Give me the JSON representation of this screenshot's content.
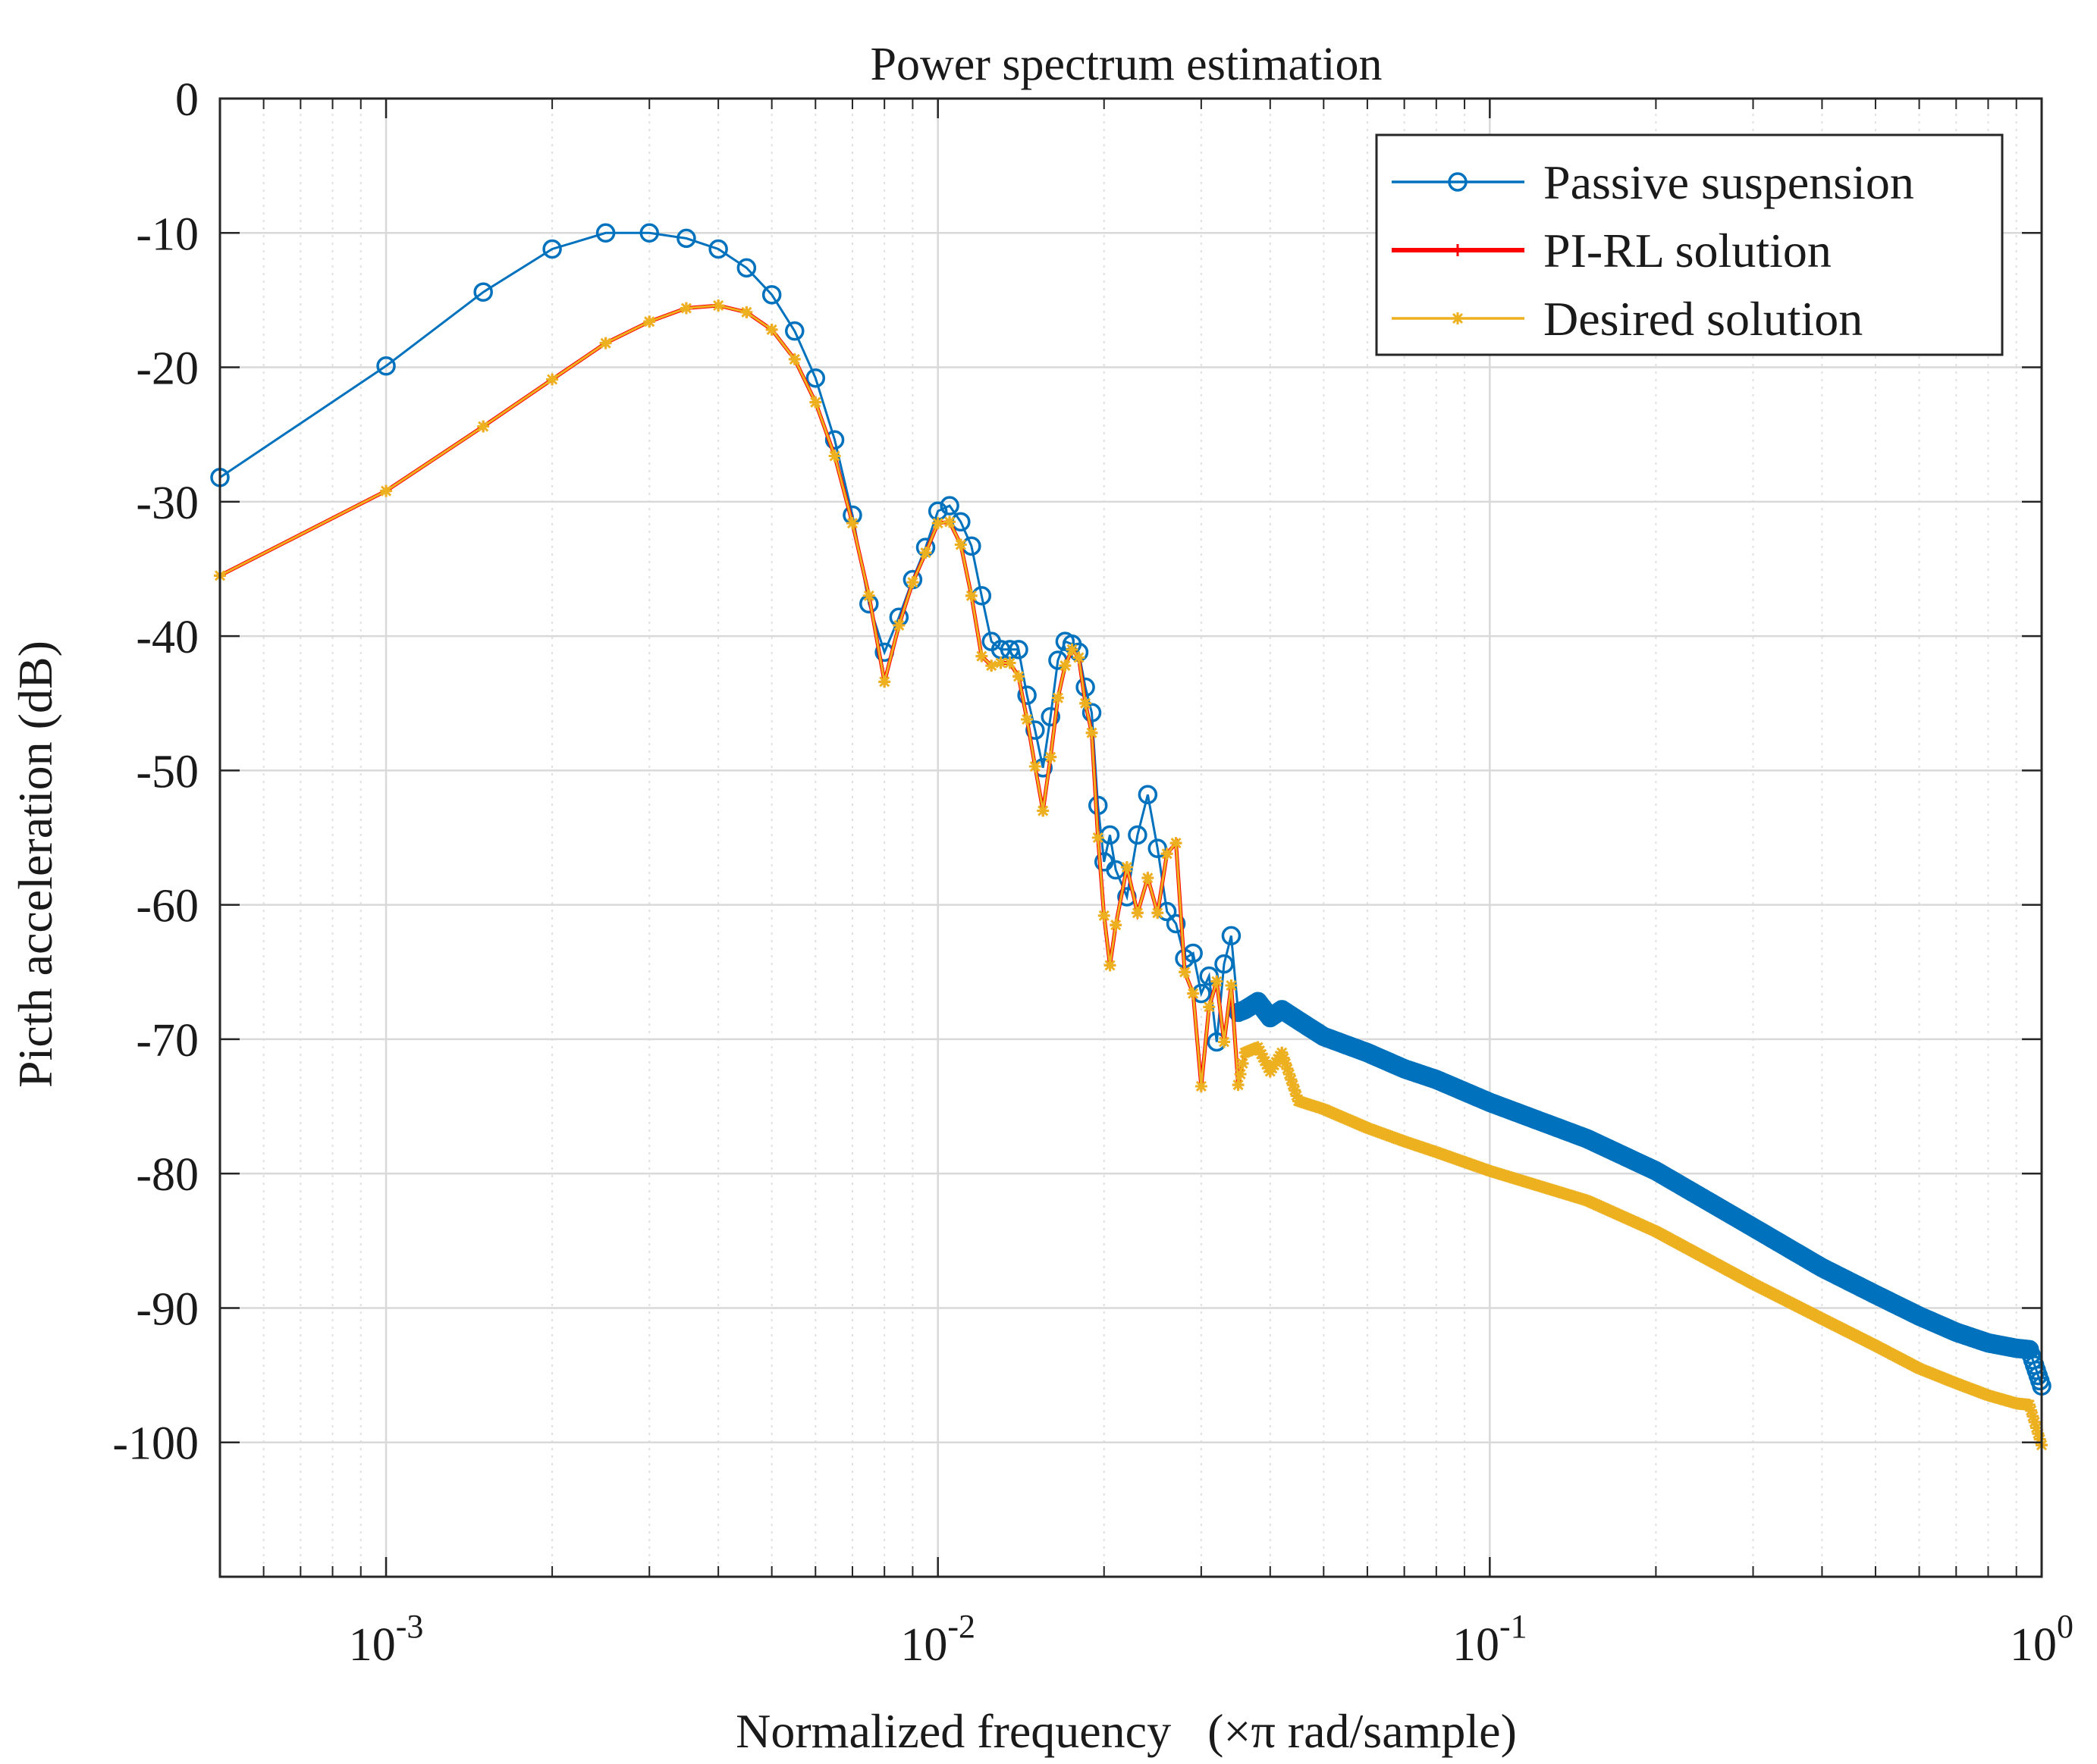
{
  "chart_data": {
    "type": "line",
    "title": "Power spectrum estimation",
    "xlabel_main": "Normalized frequency",
    "xlabel_suffix": "(×π rad/sample)",
    "ylabel": "Picth acceleration (dB)",
    "xscale": "log",
    "xlim": [
      0.0005,
      1
    ],
    "ylim": [
      -110,
      0
    ],
    "grid": true,
    "legend_position": "top-right",
    "x_tick_labels": [
      {
        "base": "10",
        "exp": "-3",
        "value": 0.001
      },
      {
        "base": "10",
        "exp": "-2",
        "value": 0.01
      },
      {
        "base": "10",
        "exp": "-1",
        "value": 0.1
      },
      {
        "base": "10",
        "exp": "0",
        "value": 1
      }
    ],
    "y_ticks": [
      0,
      -10,
      -20,
      -30,
      -40,
      -50,
      -60,
      -70,
      -80,
      -90,
      -100
    ],
    "y_tick_labels": [
      "0",
      "-10",
      "-20",
      "-30",
      "-40",
      "-50",
      "-60",
      "-70",
      "-80",
      "-90",
      "-100"
    ],
    "series": [
      {
        "name": "Passive suspension",
        "color": "#0072bd",
        "marker": "circle",
        "x": [
          0.0005,
          0.001,
          0.0015,
          0.002,
          0.0025,
          0.003,
          0.0035,
          0.004,
          0.0045,
          0.005,
          0.0055,
          0.006,
          0.0065,
          0.007,
          0.0075,
          0.008,
          0.0085,
          0.009,
          0.0095,
          0.01,
          0.0105,
          0.011,
          0.0115,
          0.012,
          0.0125,
          0.013,
          0.0135,
          0.014,
          0.0145,
          0.015,
          0.0155,
          0.016,
          0.0165,
          0.017,
          0.0175,
          0.018,
          0.0185,
          0.019,
          0.0195,
          0.02,
          0.0205,
          0.021,
          0.022,
          0.023,
          0.024,
          0.025,
          0.026,
          0.027,
          0.028,
          0.029,
          0.03,
          0.031,
          0.032,
          0.033,
          0.034,
          0.035,
          0.036,
          0.038,
          0.04,
          0.042,
          0.045,
          0.05,
          0.06,
          0.07,
          0.08,
          0.1,
          0.15,
          0.2,
          0.3,
          0.4,
          0.5,
          0.6,
          0.7,
          0.8,
          0.9,
          0.95,
          1.0
        ],
        "y": [
          -28.2,
          -19.9,
          -14.4,
          -11.2,
          -10.0,
          -10.0,
          -10.4,
          -11.2,
          -12.6,
          -14.6,
          -17.3,
          -20.8,
          -25.4,
          -31.0,
          -37.6,
          -41.2,
          -38.6,
          -35.8,
          -33.4,
          -30.7,
          -30.3,
          -31.5,
          -33.3,
          -37.0,
          -40.4,
          -41.0,
          -41.0,
          -41.0,
          -44.4,
          -47.0,
          -49.8,
          -46.0,
          -41.8,
          -40.4,
          -40.6,
          -41.2,
          -43.8,
          -45.7,
          -52.6,
          -56.8,
          -54.8,
          -57.4,
          -59.4,
          -54.8,
          -51.8,
          -55.8,
          -60.5,
          -61.4,
          -64.0,
          -63.6,
          -66.6,
          -65.3,
          -70.2,
          -64.4,
          -62.3,
          -68.0,
          -67.8,
          -67.2,
          -68.4,
          -67.8,
          -68.6,
          -69.8,
          -71.0,
          -72.2,
          -73.0,
          -74.7,
          -77.4,
          -79.8,
          -84.0,
          -87.0,
          -89.0,
          -90.6,
          -91.8,
          -92.6,
          -93.0,
          -93.1,
          -95.8
        ]
      },
      {
        "name": "PI-RL solution",
        "color": "#ff0000",
        "marker": "plus",
        "x": [
          0.0005,
          0.001,
          0.0015,
          0.002,
          0.0025,
          0.003,
          0.0035,
          0.004,
          0.0045,
          0.005,
          0.0055,
          0.006,
          0.0065,
          0.007,
          0.0075,
          0.008,
          0.0085,
          0.009,
          0.0095,
          0.01,
          0.0105,
          0.011,
          0.0115,
          0.012,
          0.0125,
          0.013,
          0.0135,
          0.014,
          0.0145,
          0.015,
          0.0155,
          0.016,
          0.0165,
          0.017,
          0.0175,
          0.018,
          0.0185,
          0.019,
          0.0195,
          0.02,
          0.0205,
          0.021,
          0.022,
          0.023,
          0.024,
          0.025,
          0.026,
          0.027,
          0.028,
          0.029,
          0.03,
          0.031,
          0.032,
          0.033,
          0.034,
          0.035,
          0.036,
          0.038,
          0.04,
          0.042,
          0.045,
          0.05,
          0.06,
          0.07,
          0.08,
          0.1,
          0.15,
          0.2,
          0.3,
          0.4,
          0.5,
          0.6,
          0.7,
          0.8,
          0.9,
          0.95,
          1.0
        ],
        "y": [
          -35.5,
          -29.2,
          -24.4,
          -20.9,
          -18.2,
          -16.6,
          -15.6,
          -15.4,
          -15.9,
          -17.2,
          -19.4,
          -22.6,
          -26.6,
          -31.6,
          -37.0,
          -43.4,
          -39.2,
          -36.0,
          -33.8,
          -31.6,
          -31.5,
          -33.2,
          -37.0,
          -41.5,
          -42.2,
          -42.0,
          -42.0,
          -43.0,
          -46.2,
          -49.7,
          -53.0,
          -49.0,
          -44.6,
          -42.2,
          -41.0,
          -41.6,
          -45.0,
          -47.2,
          -55.0,
          -60.8,
          -64.5,
          -61.5,
          -57.2,
          -60.6,
          -58.0,
          -60.6,
          -56.2,
          -55.4,
          -65.0,
          -66.6,
          -73.5,
          -67.6,
          -65.7,
          -70.2,
          -66.0,
          -73.4,
          -71.0,
          -70.6,
          -72.4,
          -71.0,
          -74.6,
          -75.2,
          -76.6,
          -77.6,
          -78.4,
          -79.8,
          -82.0,
          -84.3,
          -88.2,
          -90.8,
          -92.8,
          -94.5,
          -95.6,
          -96.5,
          -97.1,
          -97.2,
          -100.2
        ]
      },
      {
        "name": "Desired solution",
        "color": "#edb120",
        "marker": "star",
        "x": [
          0.0005,
          0.001,
          0.0015,
          0.002,
          0.0025,
          0.003,
          0.0035,
          0.004,
          0.0045,
          0.005,
          0.0055,
          0.006,
          0.0065,
          0.007,
          0.0075,
          0.008,
          0.0085,
          0.009,
          0.0095,
          0.01,
          0.0105,
          0.011,
          0.0115,
          0.012,
          0.0125,
          0.013,
          0.0135,
          0.014,
          0.0145,
          0.015,
          0.0155,
          0.016,
          0.0165,
          0.017,
          0.0175,
          0.018,
          0.0185,
          0.019,
          0.0195,
          0.02,
          0.0205,
          0.021,
          0.022,
          0.023,
          0.024,
          0.025,
          0.026,
          0.027,
          0.028,
          0.029,
          0.03,
          0.031,
          0.032,
          0.033,
          0.034,
          0.035,
          0.036,
          0.038,
          0.04,
          0.042,
          0.045,
          0.05,
          0.06,
          0.07,
          0.08,
          0.1,
          0.15,
          0.2,
          0.3,
          0.4,
          0.5,
          0.6,
          0.7,
          0.8,
          0.9,
          0.95,
          1.0
        ],
        "y": [
          -35.5,
          -29.2,
          -24.4,
          -20.9,
          -18.2,
          -16.6,
          -15.6,
          -15.4,
          -15.9,
          -17.2,
          -19.4,
          -22.6,
          -26.6,
          -31.6,
          -37.0,
          -43.4,
          -39.2,
          -36.0,
          -33.8,
          -31.6,
          -31.5,
          -33.2,
          -37.0,
          -41.5,
          -42.2,
          -42.0,
          -42.0,
          -43.0,
          -46.2,
          -49.7,
          -53.0,
          -49.0,
          -44.6,
          -42.2,
          -41.0,
          -41.6,
          -45.0,
          -47.2,
          -55.0,
          -60.8,
          -64.5,
          -61.5,
          -57.2,
          -60.6,
          -58.0,
          -60.6,
          -56.2,
          -55.4,
          -65.0,
          -66.6,
          -73.5,
          -67.6,
          -65.7,
          -70.2,
          -66.0,
          -73.4,
          -71.0,
          -70.6,
          -72.4,
          -71.0,
          -74.6,
          -75.2,
          -76.6,
          -77.6,
          -78.4,
          -79.8,
          -82.0,
          -84.3,
          -88.2,
          -90.8,
          -92.8,
          -94.5,
          -95.6,
          -96.5,
          -97.1,
          -97.2,
          -100.2
        ]
      }
    ]
  }
}
